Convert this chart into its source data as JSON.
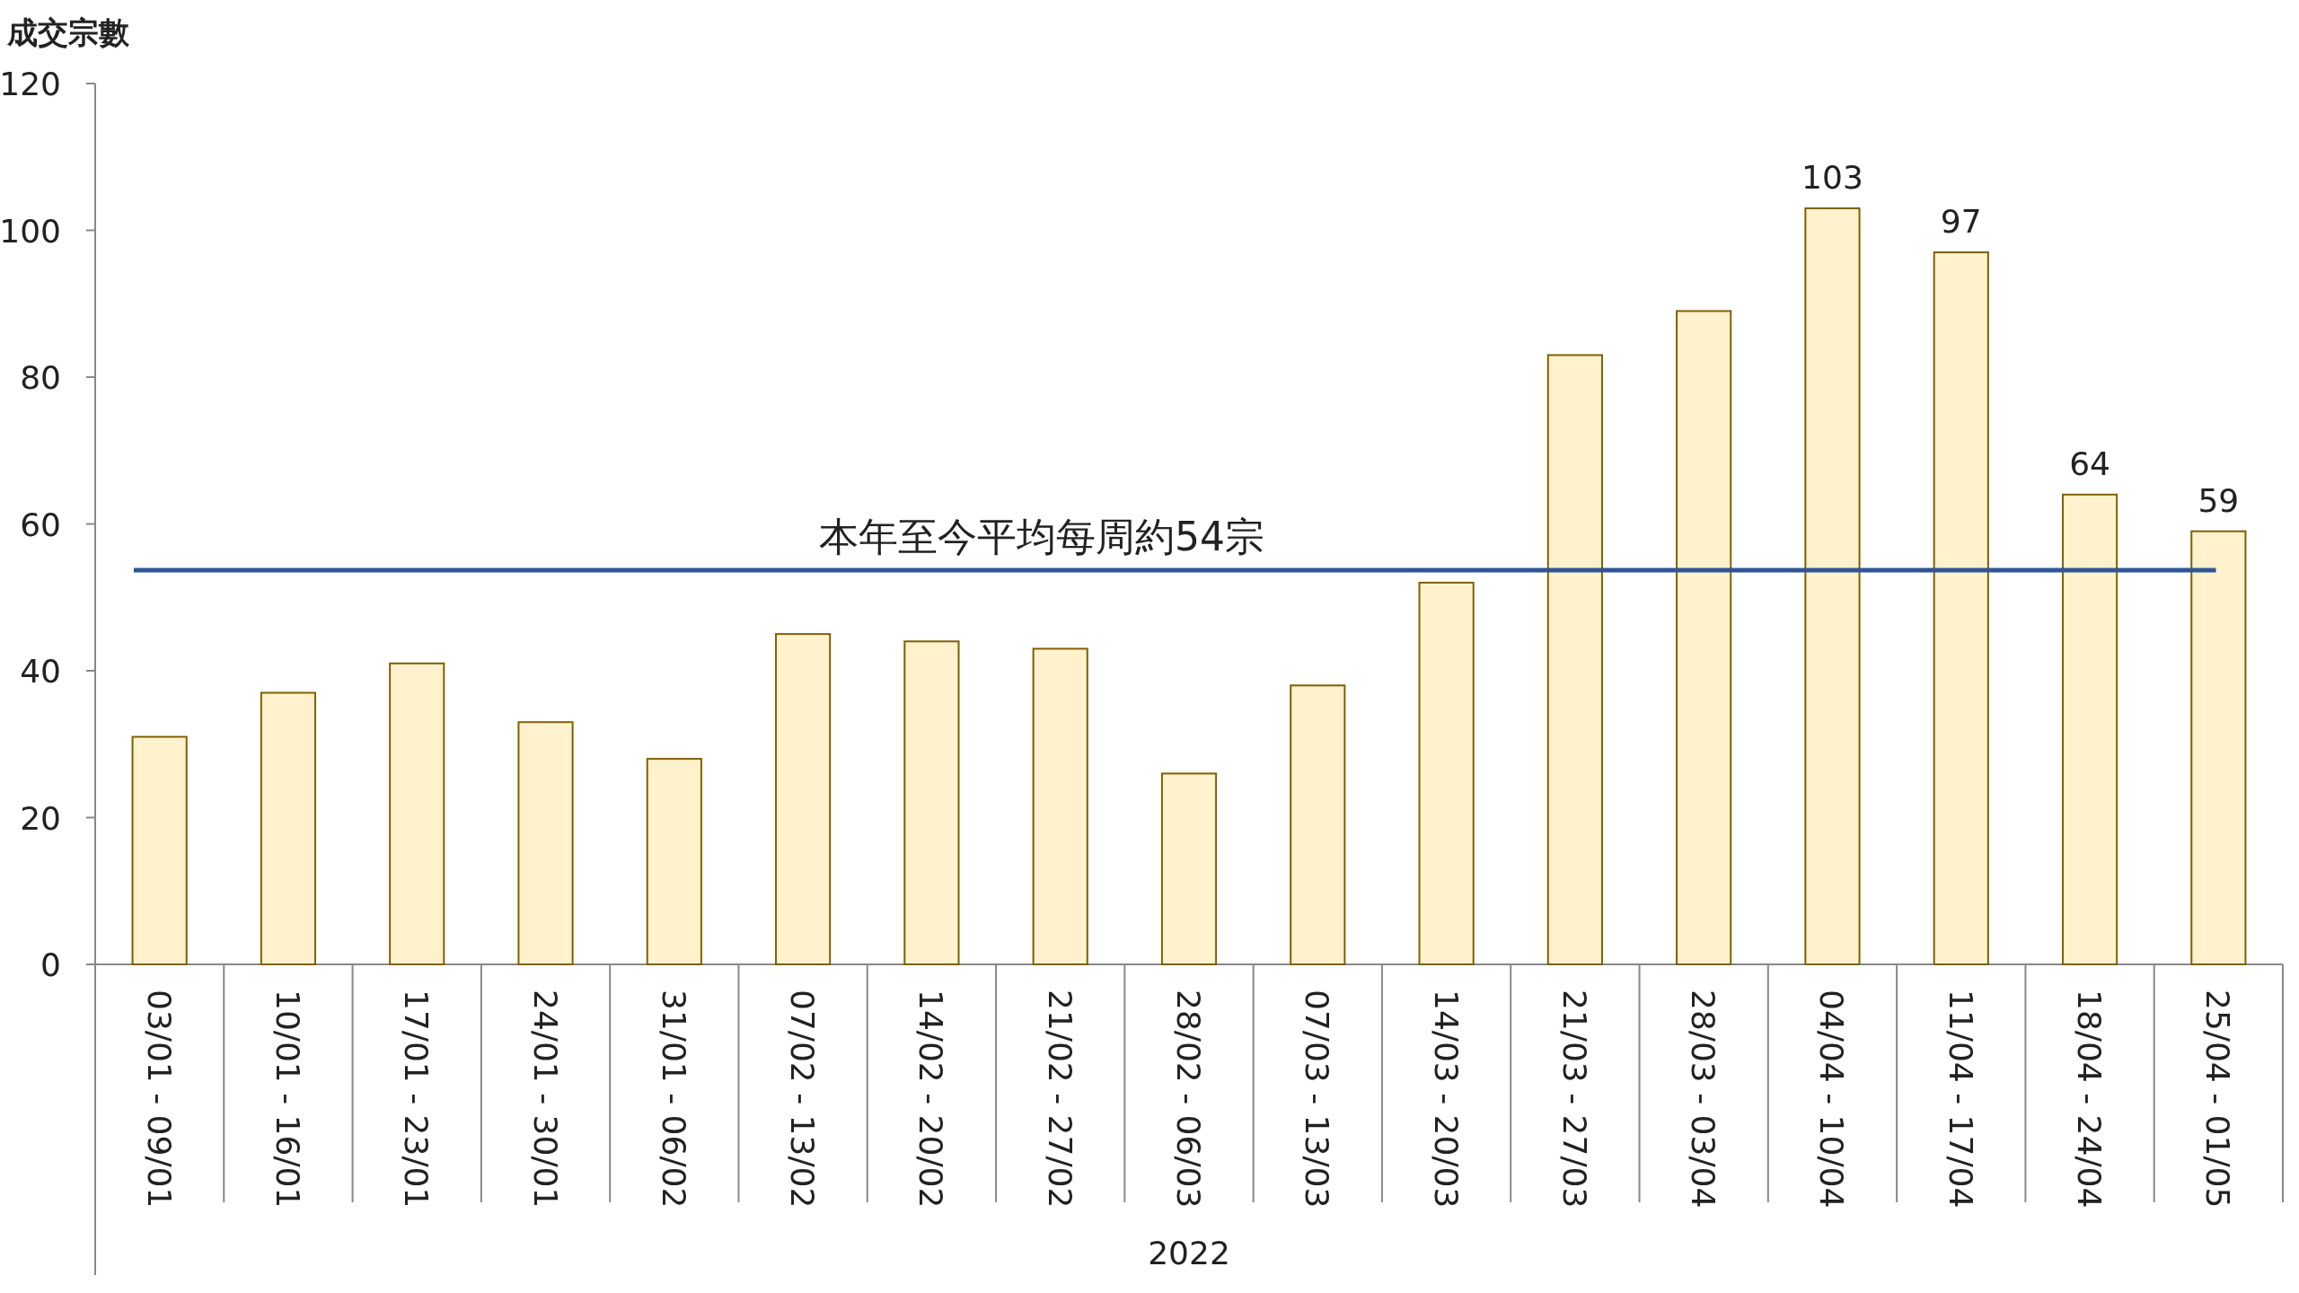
{
  "chart_data": {
    "type": "bar",
    "ylabel": "成交宗數",
    "xlabel": "2022",
    "categories": [
      "03/01 - 09/01",
      "10/01 - 16/01",
      "17/01 - 23/01",
      "24/01 - 30/01",
      "31/01 - 06/02",
      "07/02 - 13/02",
      "14/02 - 20/02",
      "21/02 - 27/02",
      "28/02 - 06/03",
      "07/03 - 13/03",
      "14/03 - 20/03",
      "21/03 - 27/03",
      "28/03 - 03/04",
      "04/04 - 10/04",
      "11/04 - 17/04",
      "18/04 - 24/04",
      "25/04 - 01/05"
    ],
    "values": [
      31,
      37,
      41,
      33,
      28,
      45,
      44,
      43,
      26,
      38,
      52,
      83,
      89,
      103,
      97,
      64,
      59
    ],
    "value_labels": [
      null,
      null,
      null,
      null,
      null,
      null,
      null,
      null,
      null,
      null,
      null,
      null,
      null,
      "103",
      "97",
      "64",
      "59"
    ],
    "color": "#fff2cc",
    "ylim": [
      0,
      120
    ],
    "yticks": [
      0,
      20,
      40,
      60,
      80,
      100,
      120
    ],
    "ref_lines": [
      {
        "axis": "y",
        "value": 53.7,
        "label": "本年至今平均每周約54宗",
        "color": "#2f5597"
      }
    ],
    "grid": false
  }
}
